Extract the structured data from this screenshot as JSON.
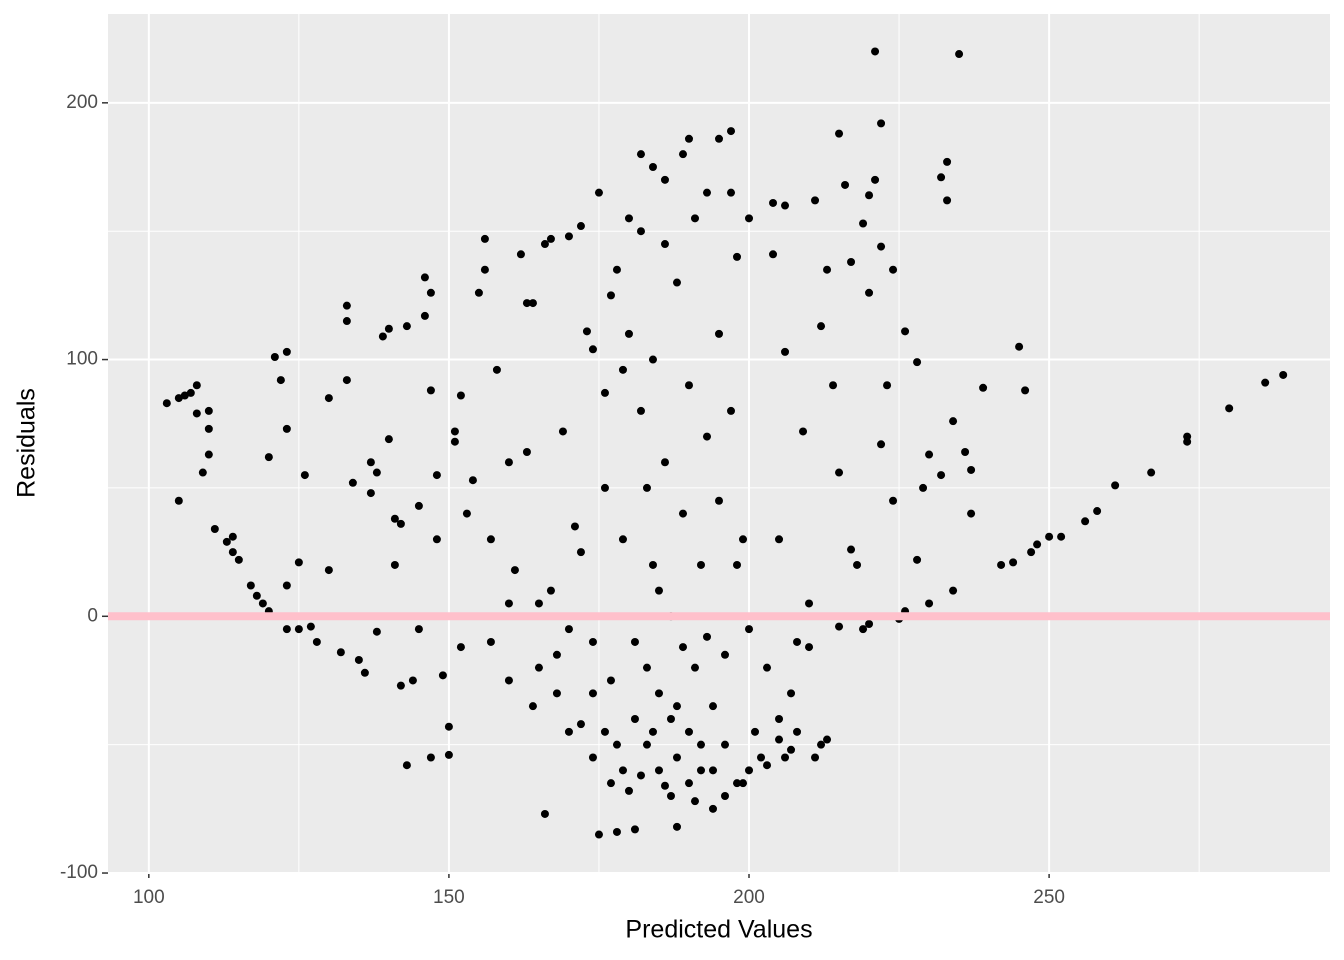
{
  "chart_data": {
    "type": "scatter",
    "x_label": "Predicted Values",
    "y_label": "Residuals",
    "xlim": [
      93.2,
      296.8
    ],
    "ylim": [
      -99.6,
      234.6
    ],
    "xticks": [
      100,
      150,
      200,
      250
    ],
    "yticks": [
      {
        "value": -100,
        "label": "-100"
      },
      0,
      100,
      200
    ],
    "x_minor_ticks": [
      125,
      175,
      225,
      275
    ],
    "y_minor_ticks": [
      -50,
      50,
      150
    ],
    "grid": true,
    "color": "#000000",
    "hline": 0,
    "hline_color": "#ffc0cb",
    "points": [
      [
        103,
        83
      ],
      [
        105,
        85
      ],
      [
        106,
        86
      ],
      [
        107,
        87
      ],
      [
        108,
        90
      ],
      [
        108,
        79
      ],
      [
        110,
        80
      ],
      [
        110,
        73
      ],
      [
        109,
        56
      ],
      [
        110,
        63
      ],
      [
        105,
        45
      ],
      [
        111,
        34
      ],
      [
        113,
        29
      ],
      [
        114,
        31
      ],
      [
        114,
        25
      ],
      [
        115,
        22
      ],
      [
        117,
        12
      ],
      [
        118,
        8
      ],
      [
        119,
        5
      ],
      [
        120,
        2
      ],
      [
        120,
        62
      ],
      [
        121,
        101
      ],
      [
        123,
        103
      ],
      [
        122,
        92
      ],
      [
        123,
        73
      ],
      [
        126,
        55
      ],
      [
        123,
        12
      ],
      [
        125,
        21
      ],
      [
        123,
        -5
      ],
      [
        125,
        -5
      ],
      [
        127,
        -4
      ],
      [
        128,
        -10
      ],
      [
        130,
        85
      ],
      [
        130,
        18
      ],
      [
        133,
        121
      ],
      [
        133,
        115
      ],
      [
        133,
        92
      ],
      [
        132,
        -14
      ],
      [
        134,
        52
      ],
      [
        135,
        -17
      ],
      [
        136,
        -22
      ],
      [
        137,
        60
      ],
      [
        137,
        48
      ],
      [
        138,
        56
      ],
      [
        138,
        -6
      ],
      [
        139,
        109
      ],
      [
        140,
        112
      ],
      [
        140,
        69
      ],
      [
        141,
        38
      ],
      [
        141,
        20
      ],
      [
        142,
        36
      ],
      [
        143,
        113
      ],
      [
        142,
        -27
      ],
      [
        143,
        -58
      ],
      [
        144,
        -25
      ],
      [
        145,
        43
      ],
      [
        145,
        -5
      ],
      [
        146,
        132
      ],
      [
        146,
        117
      ],
      [
        147,
        126
      ],
      [
        147,
        88
      ],
      [
        148,
        55
      ],
      [
        148,
        30
      ],
      [
        147,
        -55
      ],
      [
        149,
        -23
      ],
      [
        150,
        -43
      ],
      [
        150,
        -54
      ],
      [
        151,
        72
      ],
      [
        151,
        68
      ],
      [
        152,
        86
      ],
      [
        152,
        -12
      ],
      [
        153,
        40
      ],
      [
        154,
        53
      ],
      [
        155,
        126
      ],
      [
        156,
        135
      ],
      [
        156,
        147
      ],
      [
        157,
        30
      ],
      [
        157,
        -10
      ],
      [
        158,
        96
      ],
      [
        160,
        60
      ],
      [
        160,
        5
      ],
      [
        160,
        -25
      ],
      [
        161,
        18
      ],
      [
        162,
        141
      ],
      [
        163,
        122
      ],
      [
        164,
        122
      ],
      [
        163,
        64
      ],
      [
        164,
        -35
      ],
      [
        165,
        -20
      ],
      [
        166,
        145
      ],
      [
        167,
        147
      ],
      [
        166,
        -77
      ],
      [
        167,
        10
      ],
      [
        168,
        -30
      ],
      [
        169,
        72
      ],
      [
        170,
        148
      ],
      [
        170,
        -45
      ],
      [
        171,
        35
      ],
      [
        172,
        152
      ],
      [
        172,
        25
      ],
      [
        173,
        111
      ],
      [
        174,
        104
      ],
      [
        174,
        -10
      ],
      [
        174,
        -55
      ],
      [
        175,
        -85
      ],
      [
        175,
        165
      ],
      [
        176,
        87
      ],
      [
        176,
        50
      ],
      [
        177,
        125
      ],
      [
        177,
        -65
      ],
      [
        178,
        135
      ],
      [
        178,
        -84
      ],
      [
        179,
        96
      ],
      [
        179,
        30
      ],
      [
        179,
        -60
      ],
      [
        180,
        155
      ],
      [
        180,
        110
      ],
      [
        181,
        -83
      ],
      [
        181,
        -40
      ],
      [
        182,
        180
      ],
      [
        182,
        150
      ],
      [
        182,
        80
      ],
      [
        183,
        50
      ],
      [
        183,
        -20
      ],
      [
        183,
        -50
      ],
      [
        184,
        175
      ],
      [
        184,
        100
      ],
      [
        184,
        20
      ],
      [
        185,
        -60
      ],
      [
        185,
        -30
      ],
      [
        185,
        10
      ],
      [
        186,
        170
      ],
      [
        186,
        145
      ],
      [
        186,
        60
      ],
      [
        187,
        -70
      ],
      [
        187,
        -40
      ],
      [
        187,
        0
      ],
      [
        188,
        -82
      ],
      [
        188,
        130
      ],
      [
        188,
        -55
      ],
      [
        189,
        180
      ],
      [
        189,
        40
      ],
      [
        190,
        186
      ],
      [
        190,
        -45
      ],
      [
        190,
        90
      ],
      [
        191,
        -72
      ],
      [
        191,
        155
      ],
      [
        191,
        -20
      ],
      [
        192,
        20
      ],
      [
        192,
        -60
      ],
      [
        193,
        165
      ],
      [
        193,
        70
      ],
      [
        194,
        -35
      ],
      [
        194,
        -75
      ],
      [
        195,
        186
      ],
      [
        195,
        110
      ],
      [
        195,
        45
      ],
      [
        196,
        -50
      ],
      [
        196,
        -15
      ],
      [
        197,
        189
      ],
      [
        197,
        165
      ],
      [
        197,
        80
      ],
      [
        198,
        140
      ],
      [
        198,
        -65
      ],
      [
        198,
        20
      ],
      [
        199,
        30
      ],
      [
        200,
        -60
      ],
      [
        200,
        155
      ],
      [
        202,
        -55
      ],
      [
        203,
        -20
      ],
      [
        204,
        161
      ],
      [
        204,
        141
      ],
      [
        205,
        -40
      ],
      [
        205,
        30
      ],
      [
        206,
        160
      ],
      [
        206,
        103
      ],
      [
        206,
        -55
      ],
      [
        207,
        -30
      ],
      [
        208,
        -45
      ],
      [
        208,
        -10
      ],
      [
        209,
        72
      ],
      [
        210,
        5
      ],
      [
        211,
        162
      ],
      [
        211,
        -55
      ],
      [
        212,
        113
      ],
      [
        212,
        -50
      ],
      [
        213,
        135
      ],
      [
        213,
        -48
      ],
      [
        214,
        90
      ],
      [
        215,
        188
      ],
      [
        215,
        56
      ],
      [
        216,
        168
      ],
      [
        217,
        138
      ],
      [
        217,
        26
      ],
      [
        218,
        20
      ],
      [
        219,
        153
      ],
      [
        219,
        -5
      ],
      [
        220,
        126
      ],
      [
        220,
        164
      ],
      [
        221,
        170
      ],
      [
        221,
        220
      ],
      [
        222,
        192
      ],
      [
        222,
        144
      ],
      [
        222,
        67
      ],
      [
        223,
        90
      ],
      [
        224,
        135
      ],
      [
        224,
        45
      ],
      [
        226,
        111
      ],
      [
        226,
        2
      ],
      [
        228,
        99
      ],
      [
        228,
        22
      ],
      [
        229,
        50
      ],
      [
        230,
        63
      ],
      [
        230,
        5
      ],
      [
        232,
        171
      ],
      [
        232,
        55
      ],
      [
        233,
        162
      ],
      [
        233,
        177
      ],
      [
        234,
        76
      ],
      [
        234,
        10
      ],
      [
        235,
        219
      ],
      [
        236,
        64
      ],
      [
        237,
        40
      ],
      [
        237,
        57
      ],
      [
        239,
        89
      ],
      [
        242,
        20
      ],
      [
        244,
        21
      ],
      [
        245,
        105
      ],
      [
        246,
        88
      ],
      [
        247,
        25
      ],
      [
        248,
        28
      ],
      [
        250,
        31
      ],
      [
        252,
        31
      ],
      [
        256,
        37
      ],
      [
        258,
        41
      ],
      [
        261,
        51
      ],
      [
        267,
        56
      ],
      [
        273,
        70
      ],
      [
        273,
        68
      ],
      [
        280,
        81
      ],
      [
        286,
        91
      ],
      [
        289,
        94
      ],
      [
        176,
        -45
      ],
      [
        178,
        -50
      ],
      [
        180,
        -68
      ],
      [
        182,
        -62
      ],
      [
        184,
        -45
      ],
      [
        186,
        -66
      ],
      [
        188,
        -35
      ],
      [
        190,
        -65
      ],
      [
        192,
        -50
      ],
      [
        194,
        -60
      ],
      [
        196,
        -70
      ],
      [
        199,
        -65
      ],
      [
        201,
        -45
      ],
      [
        203,
        -58
      ],
      [
        205,
        -48
      ],
      [
        207,
        -52
      ],
      [
        172,
        -42
      ],
      [
        174,
        -30
      ],
      [
        177,
        -25
      ],
      [
        181,
        -10
      ],
      [
        189,
        -12
      ],
      [
        193,
        -8
      ],
      [
        200,
        -5
      ],
      [
        210,
        -12
      ],
      [
        215,
        -4
      ],
      [
        220,
        -3
      ],
      [
        225,
        -1
      ],
      [
        168,
        -15
      ],
      [
        165,
        5
      ],
      [
        170,
        -5
      ]
    ]
  }
}
